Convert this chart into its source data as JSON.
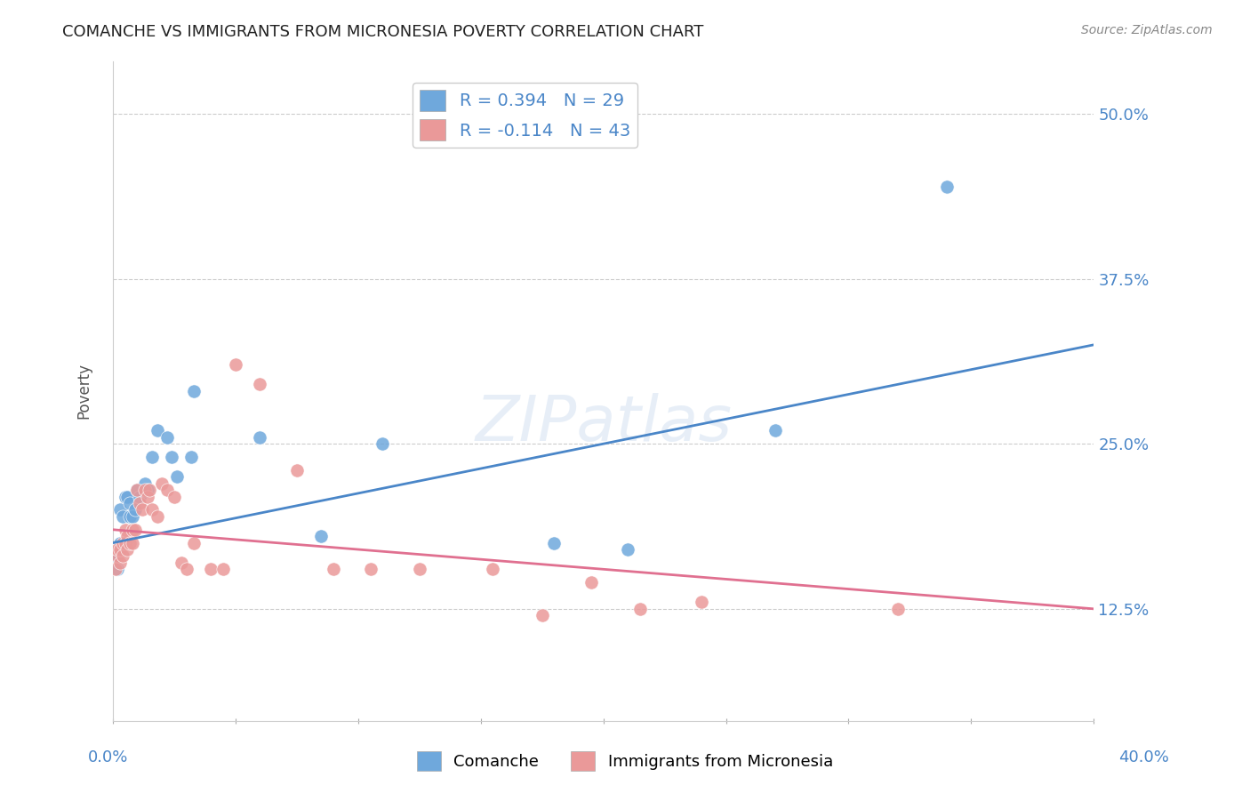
{
  "title": "COMANCHE VS IMMIGRANTS FROM MICRONESIA POVERTY CORRELATION CHART",
  "source": "Source: ZipAtlas.com",
  "ylabel": "Poverty",
  "yticks": [
    "12.5%",
    "25.0%",
    "37.5%",
    "50.0%"
  ],
  "ytick_vals": [
    0.125,
    0.25,
    0.375,
    0.5
  ],
  "xlim": [
    0.0,
    0.4
  ],
  "ylim": [
    0.04,
    0.54
  ],
  "watermark": "ZIPatlas",
  "legend1_label": "R = 0.394   N = 29",
  "legend2_label": "R = -0.114   N = 43",
  "blue_color": "#6fa8dc",
  "pink_color": "#ea9999",
  "blue_line_color": "#4a86c8",
  "pink_line_color": "#e07090",
  "comanche_x": [
    0.001,
    0.002,
    0.003,
    0.003,
    0.004,
    0.005,
    0.006,
    0.007,
    0.007,
    0.008,
    0.009,
    0.01,
    0.011,
    0.013,
    0.014,
    0.016,
    0.018,
    0.022,
    0.024,
    0.026,
    0.032,
    0.033,
    0.06,
    0.085,
    0.11,
    0.18,
    0.21,
    0.27,
    0.34
  ],
  "comanche_y": [
    0.165,
    0.155,
    0.175,
    0.2,
    0.195,
    0.21,
    0.21,
    0.195,
    0.205,
    0.195,
    0.2,
    0.215,
    0.21,
    0.22,
    0.215,
    0.24,
    0.26,
    0.255,
    0.24,
    0.225,
    0.24,
    0.29,
    0.255,
    0.18,
    0.25,
    0.175,
    0.17,
    0.26,
    0.445
  ],
  "micronesia_x": [
    0.001,
    0.002,
    0.002,
    0.003,
    0.003,
    0.004,
    0.004,
    0.005,
    0.005,
    0.006,
    0.006,
    0.007,
    0.008,
    0.008,
    0.009,
    0.01,
    0.011,
    0.012,
    0.013,
    0.014,
    0.015,
    0.016,
    0.018,
    0.02,
    0.022,
    0.025,
    0.028,
    0.03,
    0.033,
    0.04,
    0.045,
    0.05,
    0.06,
    0.075,
    0.09,
    0.105,
    0.125,
    0.155,
    0.175,
    0.195,
    0.215,
    0.24,
    0.32
  ],
  "micronesia_y": [
    0.155,
    0.165,
    0.17,
    0.16,
    0.17,
    0.165,
    0.175,
    0.175,
    0.185,
    0.17,
    0.18,
    0.175,
    0.185,
    0.175,
    0.185,
    0.215,
    0.205,
    0.2,
    0.215,
    0.21,
    0.215,
    0.2,
    0.195,
    0.22,
    0.215,
    0.21,
    0.16,
    0.155,
    0.175,
    0.155,
    0.155,
    0.31,
    0.295,
    0.23,
    0.155,
    0.155,
    0.155,
    0.155,
    0.12,
    0.145,
    0.125,
    0.13,
    0.125
  ],
  "blue_trend_x": [
    0.0,
    0.4
  ],
  "blue_trend_y": [
    0.175,
    0.325
  ],
  "pink_trend_x": [
    0.0,
    0.4
  ],
  "pink_trend_y": [
    0.185,
    0.125
  ],
  "xticks": [
    0.0,
    0.05,
    0.1,
    0.15,
    0.2,
    0.25,
    0.3,
    0.35,
    0.4
  ]
}
